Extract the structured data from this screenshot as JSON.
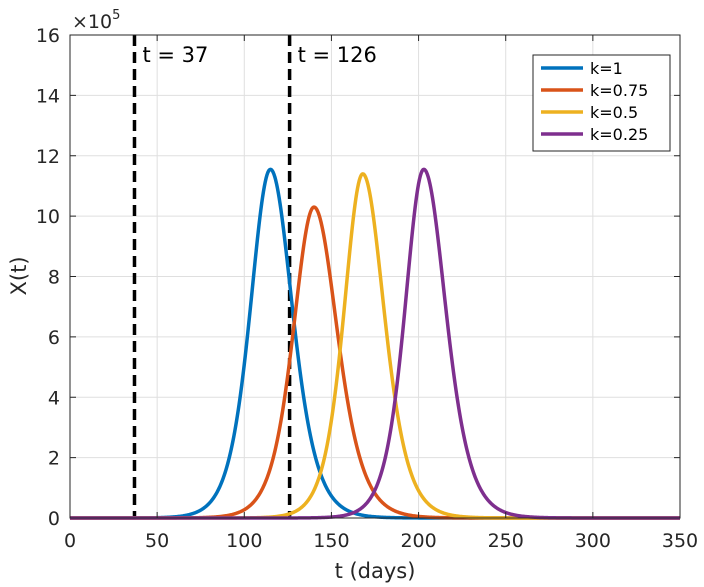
{
  "chart_data": {
    "type": "line",
    "title": "",
    "xlabel": "t (days)",
    "ylabel": "X(t)",
    "xlim": [
      0,
      350
    ],
    "ylim": [
      0,
      16
    ],
    "y_exponent_label": "×10",
    "y_exponent_power": "5",
    "grid": true,
    "legend_position": "top-right",
    "xticks": [
      0,
      50,
      100,
      150,
      200,
      250,
      300,
      350
    ],
    "yticks": [
      0,
      2,
      4,
      6,
      8,
      10,
      12,
      14,
      16
    ],
    "xtick_labels": [
      "0",
      "50",
      "100",
      "150",
      "200",
      "250",
      "300",
      "350"
    ],
    "ytick_labels": [
      "0",
      "2",
      "4",
      "6",
      "8",
      "10",
      "12",
      "14",
      "16"
    ],
    "vlines": [
      {
        "x": 37,
        "label": "t = 37",
        "style": "dashed",
        "color": "#000000"
      },
      {
        "x": 126,
        "label": "t = 126",
        "style": "dashed",
        "color": "#000000"
      }
    ],
    "series": [
      {
        "name": "k=1",
        "color": "#0072BD",
        "peak_t": 115,
        "peak_value": 11.55,
        "width_left": 15.5,
        "width_right": 17
      },
      {
        "name": "k=0.75",
        "color": "#D95319",
        "peak_t": 140,
        "peak_value": 10.3,
        "width_left": 16,
        "width_right": 18
      },
      {
        "name": "k=0.5",
        "color": "#EDB120",
        "peak_t": 168,
        "peak_value": 11.4,
        "width_left": 14.5,
        "width_right": 16.5
      },
      {
        "name": "k=0.25",
        "color": "#7E2F8E",
        "peak_t": 203,
        "peak_value": 11.55,
        "width_left": 14.5,
        "width_right": 17
      }
    ]
  }
}
